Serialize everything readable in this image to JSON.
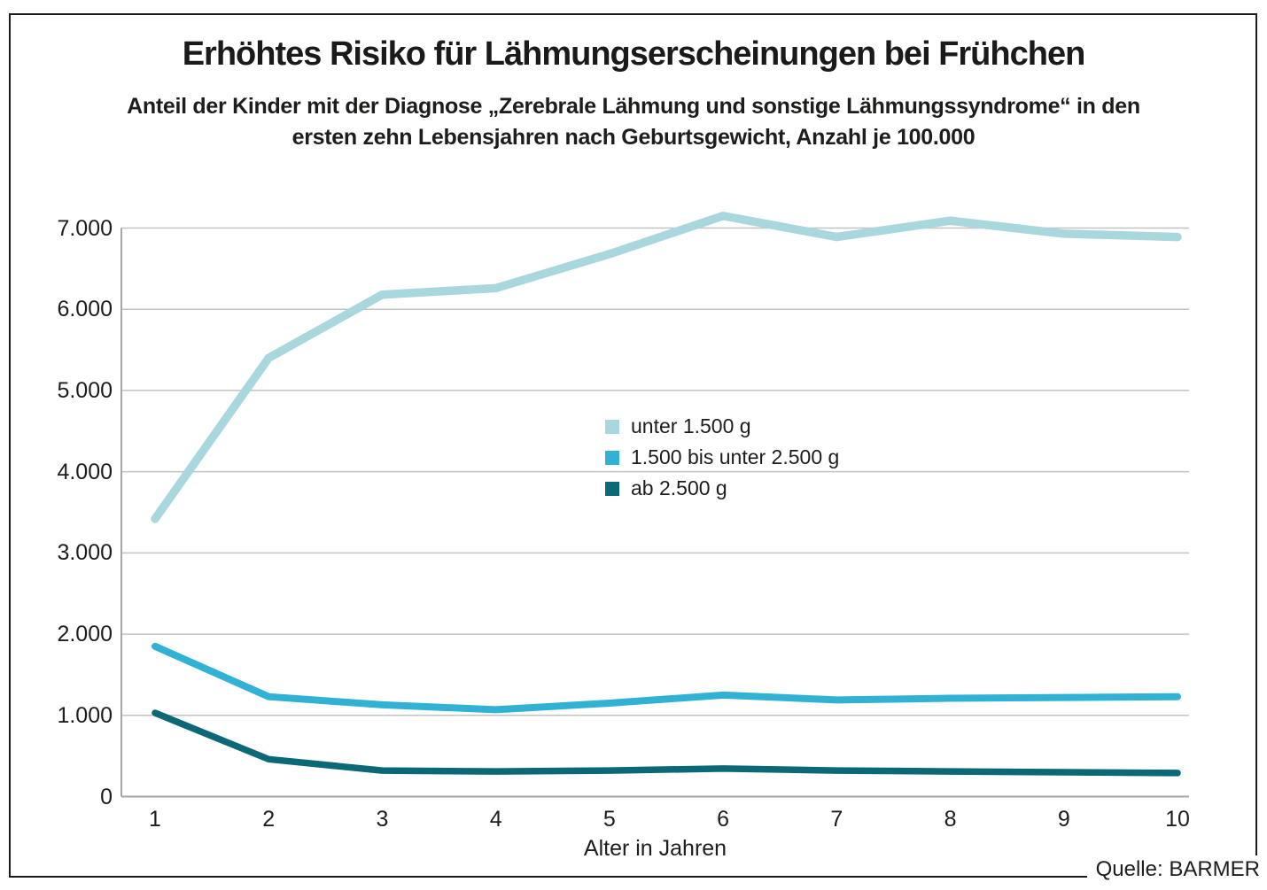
{
  "chart_data": {
    "type": "line",
    "title": "Erhöhtes Risiko für Lähmungserscheinungen bei Frühchen",
    "subtitle_lines": [
      "Anteil der Kinder mit der Diagnose „Zerebrale Lähmung und sonstige Lähmungssyndrome“ in den",
      "ersten zehn Lebensjahren nach Geburtsgewicht, Anzahl je 100.000"
    ],
    "x": [
      1,
      2,
      3,
      4,
      5,
      6,
      7,
      8,
      9,
      10
    ],
    "xlabel": "Alter in Jahren",
    "ylabel": "",
    "ylim": [
      0,
      7000
    ],
    "ytick_step": 1000,
    "grid": true,
    "legend_position": "inside-center-right",
    "series": [
      {
        "name": "unter 1.500 g",
        "color": "#a8d7de",
        "values": [
          3420,
          5400,
          6180,
          6260,
          6680,
          7150,
          6890,
          7090,
          6930,
          6890
        ]
      },
      {
        "name": "1.500 bis unter 2.500 g",
        "color": "#31b2d5",
        "values": [
          1850,
          1230,
          1130,
          1070,
          1150,
          1250,
          1190,
          1210,
          1220,
          1230
        ]
      },
      {
        "name": "ab 2.500 g",
        "color": "#0b6877",
        "values": [
          1030,
          460,
          320,
          310,
          320,
          345,
          320,
          310,
          300,
          290
        ]
      }
    ]
  },
  "source": {
    "label": "Quelle: BARMER"
  }
}
